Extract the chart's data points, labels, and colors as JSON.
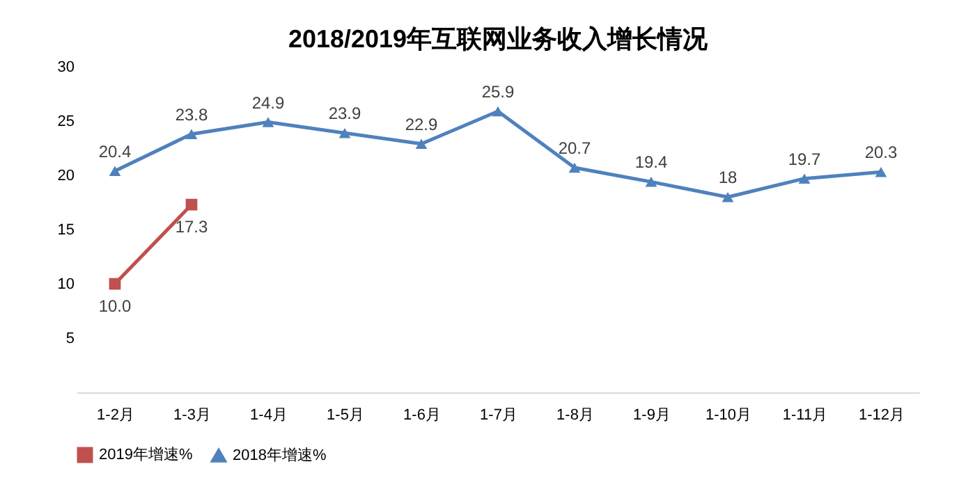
{
  "chart_data": {
    "type": "line",
    "title": "2018/2019年互联网业务收入增长情况",
    "categories": [
      "1-2月",
      "1-3月",
      "1-4月",
      "1-5月",
      "1-6月",
      "1-7月",
      "1-8月",
      "1-9月",
      "1-10月",
      "1-11月",
      "1-12月"
    ],
    "series": [
      {
        "name": "2019年增速%",
        "color": "#c0504d",
        "marker": "square",
        "values": [
          10.0,
          17.3,
          null,
          null,
          null,
          null,
          null,
          null,
          null,
          null,
          null
        ],
        "value_labels": [
          "10.0",
          "17.3",
          null,
          null,
          null,
          null,
          null,
          null,
          null,
          null,
          null
        ]
      },
      {
        "name": "2018年增速%",
        "color": "#4f81bd",
        "marker": "triangle",
        "values": [
          20.4,
          23.8,
          24.9,
          23.9,
          22.9,
          25.9,
          20.7,
          19.4,
          18,
          19.7,
          20.3
        ],
        "value_labels": [
          "20.4",
          "23.8",
          "24.9",
          "23.9",
          "22.9",
          "25.9",
          "20.7",
          "19.4",
          "18",
          "19.7",
          "20.3"
        ]
      }
    ],
    "ylim": [
      0,
      30
    ],
    "yticks": [
      5,
      10,
      15,
      20,
      25,
      30
    ],
    "grid": false,
    "legend": "bottom",
    "data_labels": true
  }
}
